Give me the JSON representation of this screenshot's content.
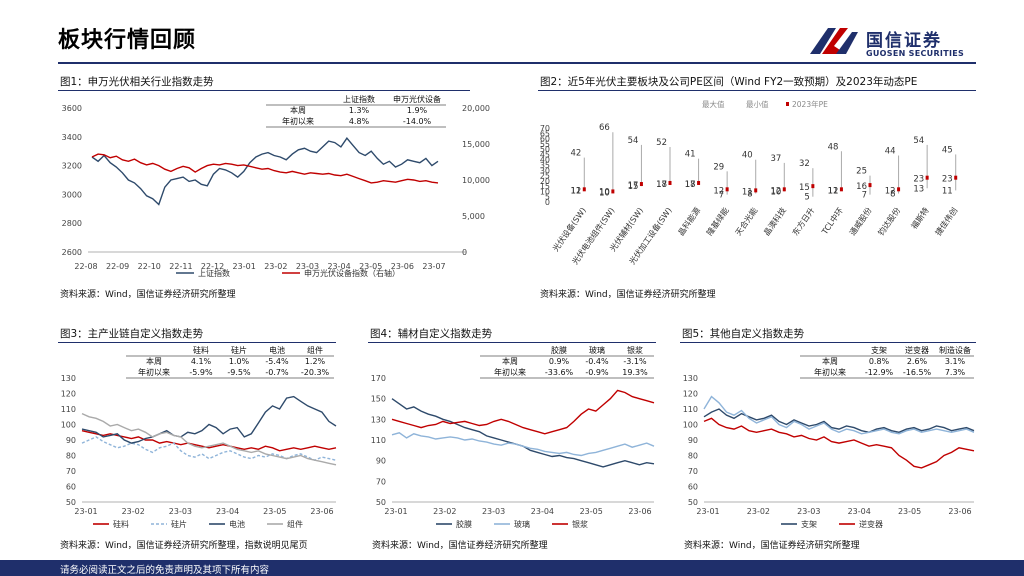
{
  "page_title": "板块行情回顾",
  "brand": {
    "name": "国信证券",
    "sub": "GUOSEN SECURITIES"
  },
  "footer": "请务必阅读正文之后的免责声明及其项下所有内容",
  "colors": {
    "navy": "#1f2f6b",
    "red": "#c00000",
    "dark": "#2e4a6b",
    "lightblue": "#8fb4d9",
    "gray": "#aaaaaa"
  },
  "panels": [
    {
      "title": "图1：申万光伏相关行业指数走势",
      "source": "资料来源：Wind，国信证券经济研究所整理"
    },
    {
      "title": "图2：近5年光伏主要板块及公司PE区间（Wind FY2一致预期）及2023年动态PE",
      "source": "资料来源：Wind，国信证券经济研究所整理"
    },
    {
      "title": "图3：主产业链自定义指数走势",
      "source": "资料来源：Wind，国信证券经济研究所整理，指数说明见尾页"
    },
    {
      "title": "图4：辅材自定义指数走势",
      "source": "资料来源：Wind，国信证券经济研究所整理"
    },
    {
      "title": "图5：其他自定义指数走势",
      "source": "资料来源：Wind，国信证券经济研究所整理"
    }
  ],
  "chart_data": [
    {
      "type": "line",
      "x_ticks": [
        "22-08",
        "22-09",
        "22-10",
        "22-11",
        "22-12",
        "23-01",
        "23-02",
        "23-03",
        "23-04",
        "23-05",
        "23-06",
        "23-07"
      ],
      "y_left": {
        "ticks": [
          "3600",
          "3400",
          "3200",
          "3000",
          "2800",
          "2600"
        ],
        "range": [
          2600,
          3600
        ]
      },
      "y_right": {
        "ticks": [
          "20,000",
          "15,000",
          "10,000",
          "5,000",
          "0"
        ],
        "range": [
          0,
          20000
        ]
      },
      "series": [
        {
          "name": "上证指数",
          "axis": "left",
          "color": "#2e4a6b",
          "values": [
            3260,
            3230,
            3270,
            3220,
            3190,
            3150,
            3100,
            3080,
            3040,
            2990,
            2970,
            2930,
            3050,
            3100,
            3110,
            3120,
            3090,
            3100,
            3070,
            3060,
            3140,
            3180,
            3170,
            3150,
            3120,
            3160,
            3220,
            3260,
            3280,
            3290,
            3270,
            3260,
            3240,
            3280,
            3310,
            3320,
            3300,
            3290,
            3330,
            3370,
            3360,
            3330,
            3390,
            3340,
            3290,
            3270,
            3300,
            3250,
            3210,
            3230,
            3190,
            3210,
            3240,
            3230,
            3220,
            3250,
            3200,
            3230
          ]
        },
        {
          "name": "申万光伏设备指数（右轴）",
          "axis": "right",
          "color": "#c00000",
          "values": [
            13200,
            13600,
            13500,
            13100,
            13300,
            12800,
            12600,
            12900,
            12400,
            12100,
            12300,
            12000,
            11500,
            11200,
            11600,
            11900,
            11700,
            11100,
            11600,
            12000,
            12200,
            12100,
            12300,
            12200,
            12000,
            12100,
            11900,
            11700,
            11500,
            11600,
            11300,
            11100,
            11000,
            11200,
            11000,
            10800,
            11000,
            10900,
            10800,
            10900,
            10700,
            10600,
            10800,
            10500,
            10200,
            9900,
            9600,
            9700,
            9900,
            9800,
            9700,
            9900,
            10100,
            10000,
            9800,
            9900,
            9700,
            9600
          ]
        }
      ],
      "stats_table": {
        "cols": [
          "上证指数",
          "申万光伏设备"
        ],
        "rows": [
          {
            "label": "本周",
            "values": [
              "1.3%",
              "1.9%"
            ]
          },
          {
            "label": "年初以来",
            "values": [
              "4.8%",
              "-14.0%"
            ]
          }
        ]
      }
    },
    {
      "type": "range",
      "y_ticks": [
        "70",
        "65",
        "60",
        "55",
        "50",
        "45",
        "40",
        "35",
        "30",
        "25",
        "20",
        "15",
        "10",
        "5",
        "0"
      ],
      "y_range": [
        0,
        70
      ],
      "legend": [
        "最大值",
        "最小值",
        "2023年PE"
      ],
      "categories": [
        "光伏设备(SW)",
        "光伏电池组件(SW)",
        "光伏辅材(SW)",
        "光伏加工设备(SW)",
        "晶科能源",
        "隆基绿能",
        "天合光能",
        "晶澳科技",
        "东方日升",
        "TCL中环",
        "通威股份",
        "钧达股份",
        "福斯特",
        "捷佳伟创"
      ],
      "max": [
        42,
        66,
        54,
        52,
        41,
        29,
        40,
        37,
        32,
        48,
        25,
        44,
        54,
        45
      ],
      "min": [
        11,
        10,
        15,
        17,
        17,
        7,
        8,
        10,
        5,
        11,
        7,
        8,
        13,
        11
      ],
      "pe": [
        12,
        10,
        17,
        18,
        18,
        12,
        11,
        12,
        15,
        12,
        16,
        12,
        23,
        23
      ]
    },
    {
      "type": "line",
      "x_ticks": [
        "23-01",
        "23-02",
        "23-03",
        "23-04",
        "23-05",
        "23-06"
      ],
      "y_ticks": [
        "130",
        "120",
        "110",
        "100",
        "90",
        "80",
        "70",
        "60",
        "50"
      ],
      "y_range": [
        50,
        130
      ],
      "series": [
        {
          "name": "硅料",
          "color": "#c00000",
          "dash": false,
          "values": [
            96,
            95,
            94,
            93,
            94,
            93,
            92,
            91,
            92,
            90,
            90,
            88,
            89,
            88,
            87,
            88,
            87,
            86,
            85,
            86,
            87,
            86,
            85,
            84,
            85,
            84,
            86,
            85,
            83,
            84,
            85,
            84,
            85,
            86,
            85,
            84,
            85
          ]
        },
        {
          "name": "硅片",
          "color": "#8fb4d9",
          "dash": true,
          "values": [
            88,
            90,
            92,
            89,
            87,
            85,
            86,
            88,
            87,
            84,
            82,
            85,
            86,
            88,
            83,
            80,
            79,
            81,
            78,
            80,
            82,
            83,
            81,
            79,
            78,
            80,
            79,
            81,
            80,
            78,
            80,
            81,
            79,
            77,
            79,
            78,
            77
          ]
        },
        {
          "name": "电池",
          "color": "#2e4a6b",
          "dash": false,
          "values": [
            97,
            96,
            95,
            92,
            93,
            94,
            90,
            88,
            89,
            91,
            92,
            94,
            96,
            93,
            92,
            95,
            94,
            96,
            100,
            98,
            94,
            97,
            98,
            92,
            94,
            101,
            108,
            112,
            110,
            117,
            118,
            115,
            112,
            110,
            108,
            102,
            99
          ]
        },
        {
          "name": "组件",
          "color": "#aaaaaa",
          "dash": false,
          "values": [
            107,
            105,
            104,
            102,
            99,
            100,
            98,
            96,
            97,
            95,
            92,
            94,
            95,
            93,
            92,
            88,
            86,
            85,
            86,
            87,
            88,
            86,
            84,
            83,
            82,
            83,
            81,
            80,
            79,
            78,
            79,
            80,
            78,
            77,
            76,
            75,
            74
          ]
        }
      ],
      "stats_table": {
        "cols": [
          "硅料",
          "硅片",
          "电池",
          "组件"
        ],
        "rows": [
          {
            "label": "本周",
            "values": [
              "4.1%",
              "1.0%",
              "-5.4%",
              "1.2%"
            ]
          },
          {
            "label": "年初以来",
            "values": [
              "-5.9%",
              "-9.5%",
              "-0.7%",
              "-20.3%"
            ]
          }
        ]
      }
    },
    {
      "type": "line",
      "x_ticks": [
        "23-01",
        "23-02",
        "23-03",
        "23-04",
        "23-05",
        "23-06"
      ],
      "y_ticks": [
        "170",
        "150",
        "130",
        "110",
        "90",
        "70",
        "50"
      ],
      "y_range": [
        50,
        170
      ],
      "series": [
        {
          "name": "胶膜",
          "color": "#2e4a6b",
          "dash": false,
          "values": [
            150,
            145,
            140,
            142,
            138,
            135,
            133,
            130,
            128,
            125,
            122,
            120,
            118,
            114,
            112,
            110,
            108,
            106,
            104,
            100,
            98,
            96,
            94,
            95,
            93,
            92,
            90,
            88,
            86,
            84,
            86,
            88,
            90,
            88,
            86,
            88,
            87
          ]
        },
        {
          "name": "玻璃",
          "color": "#8fb4d9",
          "dash": false,
          "values": [
            115,
            117,
            112,
            116,
            114,
            113,
            111,
            112,
            113,
            112,
            110,
            111,
            109,
            108,
            106,
            105,
            107,
            106,
            104,
            102,
            101,
            99,
            98,
            97,
            98,
            96,
            95,
            97,
            98,
            100,
            102,
            104,
            106,
            103,
            105,
            107,
            104
          ]
        },
        {
          "name": "银浆",
          "color": "#c00000",
          "dash": false,
          "values": [
            130,
            128,
            126,
            124,
            122,
            124,
            125,
            128,
            126,
            127,
            128,
            126,
            124,
            125,
            128,
            130,
            128,
            125,
            122,
            120,
            118,
            116,
            118,
            120,
            122,
            128,
            135,
            140,
            138,
            144,
            150,
            158,
            156,
            152,
            150,
            148,
            146
          ]
        }
      ],
      "stats_table": {
        "cols": [
          "胶膜",
          "玻璃",
          "银浆"
        ],
        "rows": [
          {
            "label": "本周",
            "values": [
              "0.9%",
              "-0.4%",
              "-3.1%"
            ]
          },
          {
            "label": "年初以来",
            "values": [
              "-33.6%",
              "-0.9%",
              "19.3%"
            ]
          }
        ]
      }
    },
    {
      "type": "line",
      "x_ticks": [
        "23-01",
        "23-02",
        "23-03",
        "23-04",
        "23-05",
        "23-06"
      ],
      "y_ticks": [
        "130",
        "120",
        "110",
        "100",
        "90",
        "80",
        "70",
        "60",
        "50"
      ],
      "y_range": [
        50,
        130
      ],
      "series": [
        {
          "name": "支架",
          "color": "#2e4a6b",
          "dash": false,
          "values": [
            105,
            108,
            110,
            106,
            104,
            107,
            105,
            103,
            104,
            106,
            102,
            100,
            103,
            101,
            99,
            100,
            102,
            98,
            97,
            99,
            98,
            96,
            95,
            97,
            98,
            96,
            95,
            97,
            98,
            96,
            97,
            99,
            98,
            96,
            97,
            98,
            96
          ]
        },
        {
          "name": "逆变器",
          "color": "#c00000",
          "dash": false,
          "values": [
            102,
            104,
            100,
            98,
            97,
            99,
            96,
            95,
            96,
            97,
            95,
            94,
            92,
            93,
            91,
            90,
            92,
            89,
            88,
            89,
            90,
            88,
            86,
            87,
            86,
            85,
            80,
            77,
            73,
            72,
            74,
            76,
            80,
            82,
            85,
            84,
            83
          ]
        },
        {
          "name": "制造设备",
          "color": "#8fb4d9",
          "dash": false,
          "values": [
            110,
            118,
            114,
            108,
            106,
            109,
            104,
            101,
            103,
            105,
            100,
            98,
            102,
            100,
            97,
            99,
            101,
            97,
            95,
            97,
            96,
            94,
            95,
            96,
            97,
            95,
            94,
            96,
            97,
            95,
            96,
            97,
            96,
            95,
            96,
            97,
            95
          ]
        }
      ],
      "legend_visible": [
        "支架",
        "逆变器"
      ],
      "stats_table": {
        "cols": [
          "支架",
          "逆变器",
          "制造设备"
        ],
        "rows": [
          {
            "label": "本周",
            "values": [
              "0.8%",
              "2.6%",
              "3.1%"
            ]
          },
          {
            "label": "年初以来",
            "values": [
              "-12.9%",
              "-16.5%",
              "7.3%"
            ]
          }
        ]
      }
    }
  ]
}
